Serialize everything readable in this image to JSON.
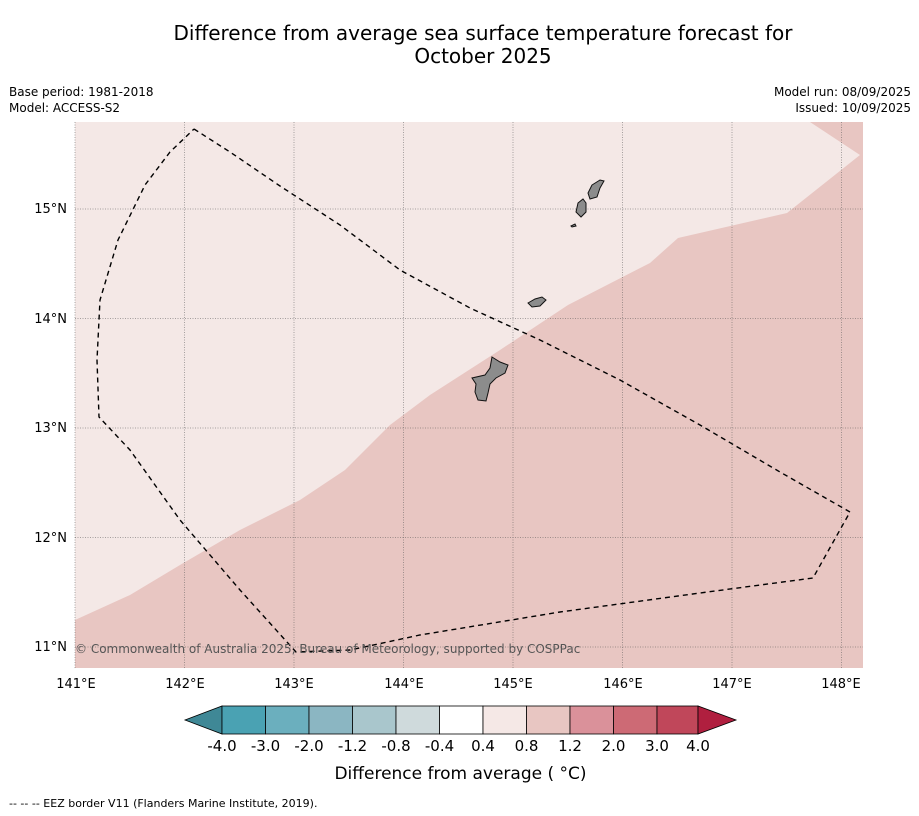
{
  "title_line1": "Difference from average sea surface temperature forecast for",
  "title_line2": "October 2025",
  "meta": {
    "base_period": "Base period: 1981-2018",
    "model": "Model: ACCESS-S2",
    "model_run": "Model run: 08/09/2025",
    "issued": "Issued: 10/09/2025"
  },
  "map": {
    "lon_range": [
      141,
      148.2
    ],
    "lat_range": [
      10.8,
      15.8
    ],
    "lon_ticks": [
      "141°E",
      "142°E",
      "143°E",
      "144°E",
      "145°E",
      "146°E",
      "147°E",
      "148°E"
    ],
    "lat_ticks": [
      "11°N",
      "12°N",
      "13°N",
      "14°N",
      "15°N"
    ],
    "copyright": "© Commonwealth of Australia 2025, Bureau of Meteorology, supported by COSPPac",
    "colors": {
      "anomaly_0_4_to_0_8": "#f4e8e6",
      "anomaly_0_8_to_1_2": "#e8c6c2",
      "land": "#8c8c8c",
      "eez_border": "#000000"
    }
  },
  "colorbar": {
    "labels": [
      "-4.0",
      "-3.0",
      "-2.0",
      "-1.2",
      "-0.8",
      "-0.4",
      "0.4",
      "0.8",
      "1.2",
      "2.0",
      "3.0",
      "4.0"
    ],
    "colors": [
      "#3f8896",
      "#4aa2b3",
      "#6bafbe",
      "#8bb6c2",
      "#a9c6cc",
      "#cfdadc",
      "#ffffff",
      "#f5e8e6",
      "#e8c6c2",
      "#da919a",
      "#cd6a75",
      "#c0475a",
      "#b01f3f"
    ],
    "title": "Difference from average ( °C)"
  },
  "footer": "--  --  -- EEZ border V11 (Flanders Marine Institute, 2019)."
}
